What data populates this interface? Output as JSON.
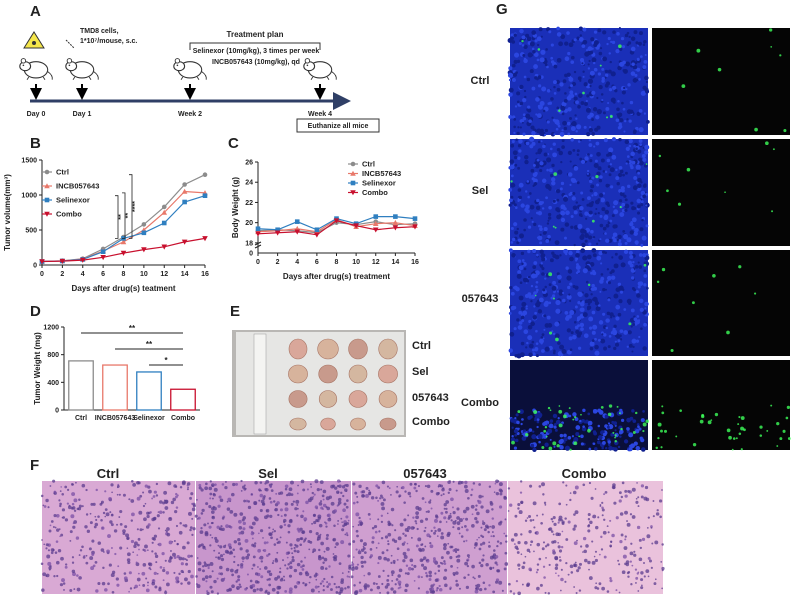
{
  "panel_labels": [
    "A",
    "B",
    "C",
    "D",
    "E",
    "F",
    "G"
  ],
  "panel_a": {
    "cells": "TMD8 cells,",
    "dose": "1*10⁷/mouse, s.c.",
    "treatment_title": "Treatment plan",
    "treatment_1": "Selinexor (10mg/kg), 3 times per week",
    "treatment_2": "INCB057643 (10mg/kg), qd",
    "timepoints": [
      "Day 0",
      "Day 1",
      "Week 2",
      "Week 4"
    ],
    "endpoint": "Euthanize all mice"
  },
  "chart_data": [
    {
      "type": "line",
      "xlabel": "Days after drug(s) teatment",
      "ylabel": "Tumor volume(mm³)",
      "x": [
        0,
        2,
        4,
        6,
        8,
        10,
        12,
        14,
        16
      ],
      "xlim": [
        0,
        16
      ],
      "xticks": [
        0,
        2,
        4,
        6,
        8,
        10,
        12,
        14,
        16
      ],
      "ylim": [
        0,
        1500
      ],
      "yticks": [
        0,
        500,
        1000,
        1500
      ],
      "legend": "upper left",
      "series": [
        {
          "name": "Ctrl",
          "color": "#8c8c8c",
          "marker": "circle",
          "values": [
            50,
            60,
            90,
            230,
            400,
            580,
            830,
            1150,
            1290
          ]
        },
        {
          "name": "INCB057643",
          "color": "#e8786a",
          "marker": "triangle",
          "values": [
            50,
            60,
            85,
            200,
            330,
            500,
            750,
            1050,
            1030
          ]
        },
        {
          "name": "Selinexor",
          "color": "#2f7fc0",
          "marker": "square",
          "values": [
            50,
            58,
            80,
            190,
            380,
            460,
            600,
            900,
            990
          ]
        },
        {
          "name": "Combo",
          "color": "#c8102e",
          "marker": "triangle-down",
          "values": [
            50,
            55,
            70,
            110,
            170,
            220,
            260,
            330,
            380
          ]
        }
      ],
      "annotations": [
        "****",
        "**",
        "**"
      ]
    },
    {
      "type": "line",
      "xlabel": "Days after drug(s) treatment",
      "ylabel": "Body Weight (g)",
      "x": [
        0,
        2,
        4,
        6,
        8,
        10,
        12,
        14,
        16
      ],
      "xlim": [
        0,
        16
      ],
      "xticks": [
        0,
        2,
        4,
        6,
        8,
        10,
        12,
        14,
        16
      ],
      "ylim": [
        17,
        26
      ],
      "yticks": [
        18,
        20,
        22,
        24,
        26
      ],
      "ybreak_label": "0",
      "legend": "upper right",
      "series": [
        {
          "name": "Ctrl",
          "color": "#8c8c8c",
          "marker": "circle",
          "values": [
            19.2,
            19.3,
            19.2,
            19.0,
            20.0,
            19.8,
            20.1,
            19.8,
            19.9
          ]
        },
        {
          "name": "INCB57643",
          "color": "#e8786a",
          "marker": "triangle",
          "values": [
            19.1,
            19.2,
            19.4,
            19.1,
            20.3,
            19.6,
            19.9,
            20.0,
            19.7
          ]
        },
        {
          "name": "Selinexor",
          "color": "#2f7fc0",
          "marker": "square",
          "values": [
            19.4,
            19.3,
            20.1,
            19.3,
            20.4,
            19.9,
            20.6,
            20.6,
            20.4
          ]
        },
        {
          "name": "Combo",
          "color": "#c8102e",
          "marker": "triangle-down",
          "values": [
            18.9,
            19.0,
            19.1,
            18.8,
            20.2,
            19.7,
            19.3,
            19.5,
            19.6
          ]
        }
      ]
    },
    {
      "type": "bar",
      "ylabel": "Tumor Weight (mg)",
      "categories": [
        "Ctrl",
        "INCB057643",
        "Selinexor",
        "Combo"
      ],
      "values": [
        710,
        650,
        550,
        300
      ],
      "colors": [
        "#8c8c8c",
        "#e8786a",
        "#2f7fc0",
        "#c8102e"
      ],
      "ylim": [
        0,
        1200
      ],
      "yticks": [
        0,
        400,
        800,
        1200
      ],
      "annotations": [
        "**",
        "**",
        "*"
      ]
    }
  ],
  "panel_e": {
    "labels": [
      "Ctrl",
      "Sel",
      "057643",
      "Combo"
    ]
  },
  "panel_f": {
    "labels": [
      "Ctrl",
      "Sel",
      "057643",
      "Combo"
    ]
  },
  "panel_g": {
    "labels": [
      "Ctrl",
      "Sel",
      "057643",
      "Combo"
    ]
  }
}
